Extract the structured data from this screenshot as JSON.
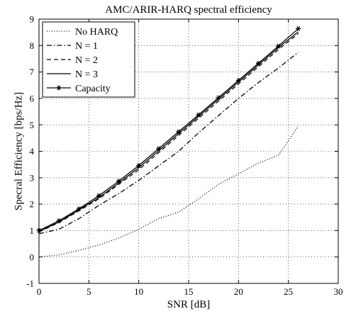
{
  "chart_data": {
    "type": "line",
    "title": "AMC/ARIR-HARQ spectral efficiency",
    "xlabel": "SNR [dB]",
    "ylabel": "Specral Efficiency [bps/Hz]",
    "xlim": [
      0,
      30
    ],
    "ylim": [
      -1,
      9
    ],
    "xticks": [
      0,
      5,
      10,
      15,
      20,
      25,
      30
    ],
    "yticks": [
      -1,
      0,
      1,
      2,
      3,
      4,
      5,
      6,
      7,
      8,
      9
    ],
    "grid": true,
    "legend_position": "top-left",
    "series": [
      {
        "name": "No HARQ",
        "style": "dotted",
        "x": [
          0,
          2,
          4,
          6,
          8,
          10,
          12,
          14,
          16,
          18,
          20,
          22,
          24,
          26
        ],
        "y": [
          0.0,
          0.08,
          0.25,
          0.45,
          0.72,
          1.05,
          1.45,
          1.7,
          2.2,
          2.75,
          3.15,
          3.55,
          3.85,
          4.95
        ]
      },
      {
        "name": "N = 1",
        "style": "dashdot",
        "x": [
          0,
          2,
          4,
          6,
          8,
          10,
          12,
          14,
          16,
          18,
          20,
          22,
          24,
          26
        ],
        "y": [
          0.88,
          1.05,
          1.45,
          1.95,
          2.4,
          2.9,
          3.45,
          4.0,
          4.7,
          5.35,
          6.0,
          6.6,
          7.15,
          7.75
        ]
      },
      {
        "name": "N = 2",
        "style": "dashed",
        "x": [
          0,
          2,
          4,
          6,
          8,
          10,
          12,
          14,
          16,
          18,
          20,
          22,
          24,
          26
        ],
        "y": [
          0.95,
          1.3,
          1.75,
          2.2,
          2.75,
          3.3,
          3.95,
          4.6,
          5.25,
          5.9,
          6.55,
          7.2,
          7.85,
          8.45
        ]
      },
      {
        "name": "N = 3",
        "style": "solid",
        "x": [
          0,
          2,
          4,
          6,
          8,
          10,
          12,
          14,
          16,
          18,
          20,
          22,
          24,
          26
        ],
        "y": [
          0.97,
          1.32,
          1.78,
          2.25,
          2.8,
          3.38,
          4.02,
          4.67,
          5.32,
          5.97,
          6.62,
          7.27,
          7.92,
          8.52
        ]
      },
      {
        "name": "Capacity",
        "style": "solid-star",
        "x": [
          0,
          2,
          4,
          6,
          8,
          10,
          12,
          14,
          16,
          18,
          20,
          22,
          24,
          26
        ],
        "y": [
          1.0,
          1.37,
          1.82,
          2.32,
          2.87,
          3.46,
          4.1,
          4.74,
          5.38,
          6.03,
          6.68,
          7.33,
          7.98,
          8.64
        ]
      }
    ]
  }
}
